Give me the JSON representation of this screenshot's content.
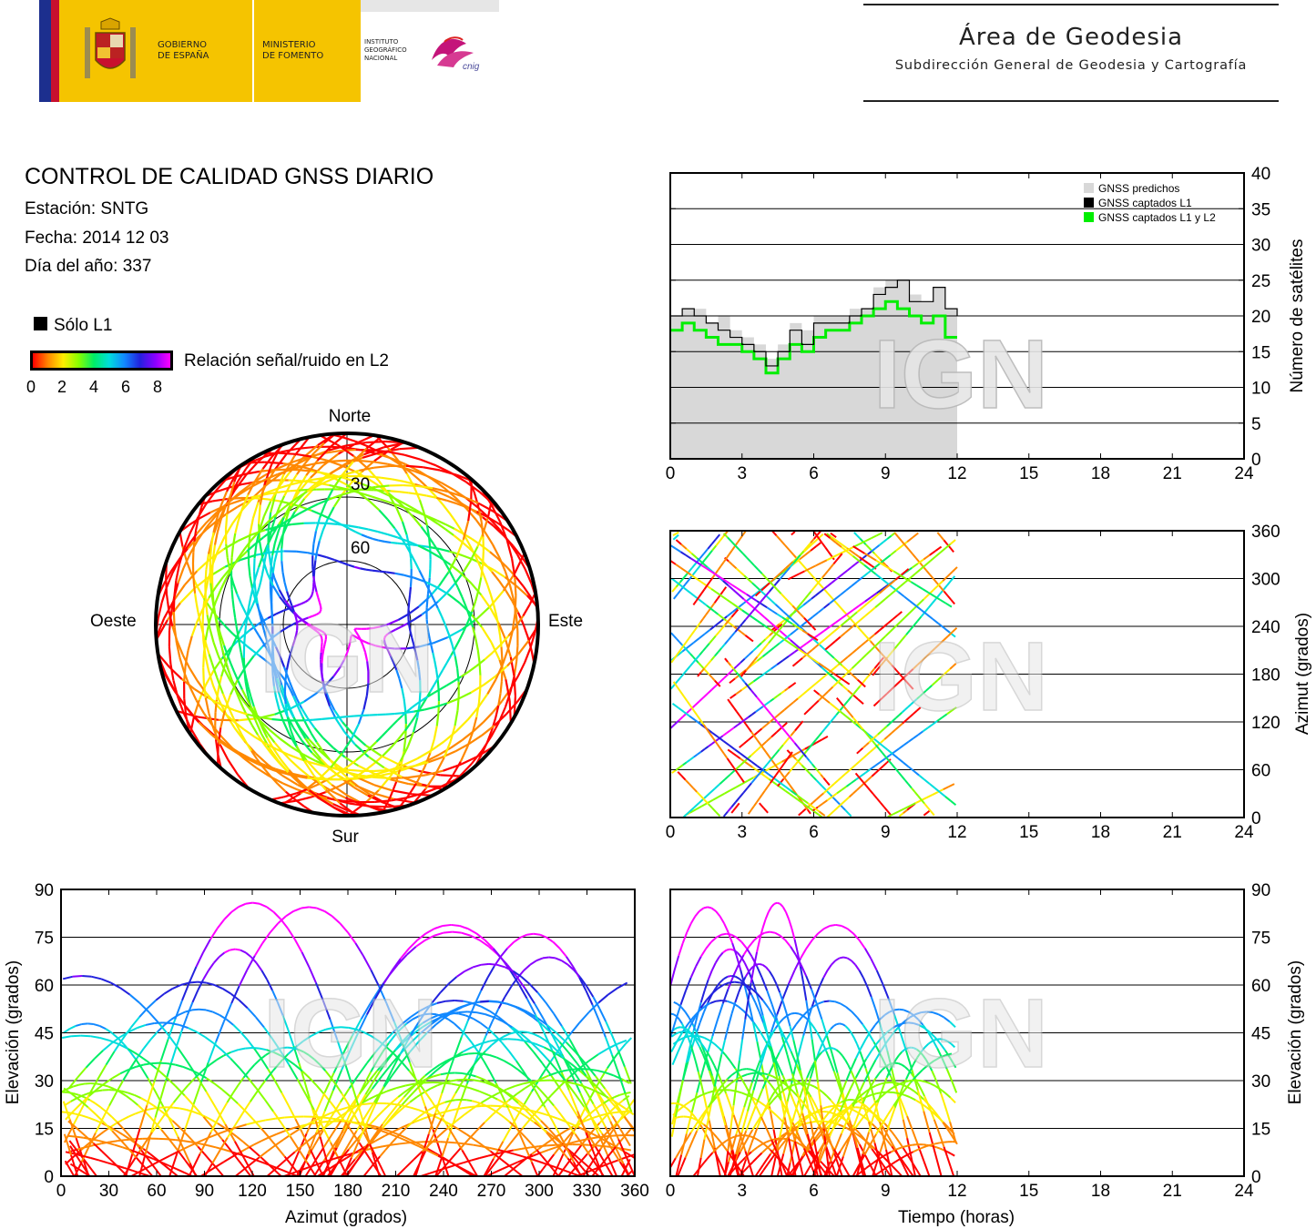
{
  "header": {
    "gov_line1": "GOBIERNO",
    "gov_line2": "DE ESPAÑA",
    "min_line1": "MINISTERIO",
    "min_line2": "DE FOMENTO",
    "inst_line1": "INSTITUTO",
    "inst_line2": "GEOGRÁFICO",
    "inst_line3": "NACIONAL",
    "cnig_logo": "cnig",
    "area_title": "Área de Geodesia",
    "area_subtitle": "Subdirección General de Geodesia y Cartografía"
  },
  "info": {
    "title": "CONTROL DE CALIDAD GNSS DIARIO",
    "station": "Estación: SNTG",
    "date": "Fecha: 2014 12 03",
    "doy": "Día del año: 337"
  },
  "legend": {
    "l1_only": "Sólo L1",
    "snr_label": "Relación señal/ruido en L2",
    "snr_ticks": [
      "0",
      "2",
      "4",
      "6",
      "8"
    ]
  },
  "colors": {
    "predicted": "#d8d8d8",
    "l1": "#000000",
    "l1l2": "#00ee00",
    "snr_scale": [
      "#ff0000",
      "#ff8800",
      "#ffee00",
      "#88ff00",
      "#00ee66",
      "#00dddd",
      "#1188ff",
      "#2222dd",
      "#8800ff",
      "#ff00ff"
    ]
  },
  "watermark": "IGN",
  "chart_data": [
    {
      "id": "satellite_count",
      "type": "line",
      "ylabel": "Número de satélites",
      "xlim": [
        0,
        24
      ],
      "ylim": [
        0,
        40
      ],
      "xticks": [
        "0",
        "3",
        "6",
        "9",
        "12",
        "15",
        "18",
        "21",
        "24"
      ],
      "yticks": [
        "0",
        "5",
        "10",
        "15",
        "20",
        "25",
        "30",
        "35",
        "40"
      ],
      "grid": "horizontal",
      "legend_position": "top-right",
      "series": [
        {
          "name": "GNSS predichos",
          "type": "area",
          "x": [
            0,
            0.5,
            1,
            1.5,
            2,
            2.5,
            3,
            3.5,
            4,
            4.5,
            5,
            5.5,
            6,
            6.5,
            7,
            7.5,
            8,
            8.5,
            9,
            9.5,
            10,
            10.5,
            11,
            11.5,
            12
          ],
          "values": [
            20,
            21,
            21,
            19,
            20,
            18,
            17,
            16,
            14,
            16,
            19,
            18,
            20,
            20,
            20,
            21,
            21,
            24,
            25,
            25,
            23,
            22,
            24,
            21,
            20
          ]
        },
        {
          "name": "GNSS captados L1",
          "x": [
            0,
            0.5,
            1,
            1.5,
            2,
            2.5,
            3,
            3.5,
            4,
            4.5,
            5,
            5.5,
            6,
            6.5,
            7,
            7.5,
            8,
            8.5,
            9,
            9.5,
            10,
            10.5,
            11,
            11.5,
            12
          ],
          "values": [
            20,
            21,
            20,
            19,
            18,
            17,
            16,
            15,
            13,
            15,
            18,
            16,
            19,
            19,
            19,
            20,
            21,
            23,
            24,
            25,
            22,
            22,
            24,
            21,
            20
          ]
        },
        {
          "name": "GNSS captados L1 y L2",
          "x": [
            0,
            0.5,
            1,
            1.5,
            2,
            2.5,
            3,
            3.5,
            4,
            4.5,
            5,
            5.5,
            6,
            6.5,
            7,
            7.5,
            8,
            8.5,
            9,
            9.5,
            10,
            10.5,
            11,
            11.5,
            12
          ],
          "values": [
            18,
            19,
            18,
            17,
            16,
            16,
            15,
            14,
            12,
            14,
            16,
            15,
            17,
            18,
            18,
            19,
            20,
            21,
            22,
            21,
            20,
            19,
            20,
            17,
            17
          ]
        }
      ]
    },
    {
      "id": "skyplot",
      "type": "scatter",
      "directions": {
        "north": "Norte",
        "south": "Sur",
        "east": "Este",
        "west": "Oeste"
      },
      "elevation_rings": [
        "30",
        "60"
      ]
    },
    {
      "id": "azimuth_vs_time",
      "type": "scatter",
      "ylabel": "Azimut (grados)",
      "xlim": [
        0,
        24
      ],
      "ylim": [
        0,
        360
      ],
      "xticks": [
        "0",
        "3",
        "6",
        "9",
        "12",
        "15",
        "18",
        "21",
        "24"
      ],
      "yticks": [
        "0",
        "60",
        "120",
        "180",
        "240",
        "300",
        "360"
      ]
    },
    {
      "id": "elevation_vs_azimuth",
      "type": "scatter",
      "xlabel": "Azimut (grados)",
      "ylabel": "Elevación (grados)",
      "xlim": [
        0,
        360
      ],
      "ylim": [
        0,
        90
      ],
      "xticks": [
        "0",
        "30",
        "60",
        "90",
        "120",
        "150",
        "180",
        "210",
        "240",
        "270",
        "300",
        "330",
        "360"
      ],
      "yticks": [
        "0",
        "15",
        "30",
        "45",
        "60",
        "75",
        "90"
      ]
    },
    {
      "id": "elevation_vs_time",
      "type": "scatter",
      "xlabel": "Tiempo (horas)",
      "ylabel": "Elevación (grados)",
      "xlim": [
        0,
        24
      ],
      "ylim": [
        0,
        90
      ],
      "xticks": [
        "0",
        "3",
        "6",
        "9",
        "12",
        "15",
        "18",
        "21",
        "24"
      ],
      "yticks": [
        "0",
        "15",
        "30",
        "45",
        "60",
        "75",
        "90"
      ]
    }
  ]
}
